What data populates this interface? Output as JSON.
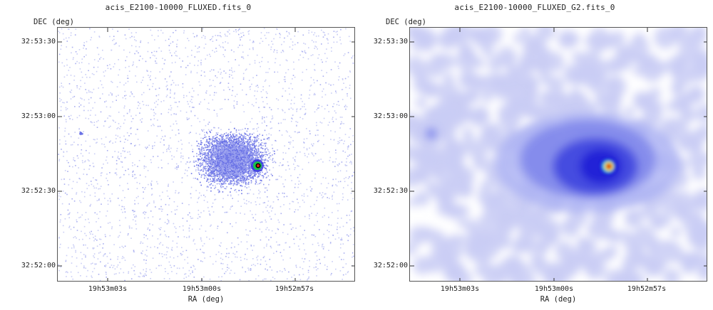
{
  "panels": [
    {
      "title": "acis_E2100-10000_FLUXED.fits_0",
      "y_axis_label": "DEC (deg)",
      "x_axis_label": "RA (deg)",
      "y_ticks": [
        "32:53:30",
        "32:53:00",
        "32:52:30",
        "32:52:00"
      ],
      "x_ticks": [
        "19h53m03s",
        "19h53m00s",
        "19h52m57s"
      ],
      "style": "raw-events"
    },
    {
      "title": "acis_E2100-10000_FLUXED_G2.fits_0",
      "y_axis_label": "DEC (deg)",
      "x_axis_label": "RA (deg)",
      "y_ticks": [
        "32:53:30",
        "32:53:00",
        "32:52:30",
        "32:52:00"
      ],
      "x_ticks": [
        "19h53m03s",
        "19h53m00s",
        "19h52m57s"
      ],
      "style": "smoothed"
    }
  ],
  "colors": {
    "faint": "#c9cdf5",
    "medium": "#6a72e6",
    "strong": "#1c1cd8",
    "core_green": "#19c24a",
    "core_red": "#d61b14",
    "core_yellow": "#f2e21a"
  }
}
